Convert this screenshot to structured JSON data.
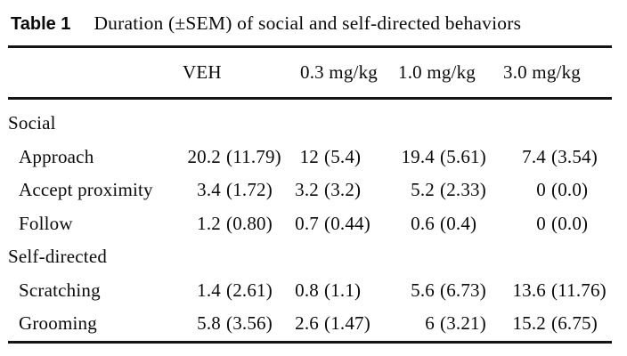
{
  "table": {
    "label": "Table 1",
    "caption": "Duration (±SEM) of social and self-directed behaviors",
    "columns": [
      "VEH",
      "0.3 mg/kg",
      "1.0 mg/kg",
      "3.0 mg/kg"
    ],
    "sections": [
      {
        "name": "Social",
        "rows": [
          {
            "label": "Approach",
            "cells": [
              {
                "value": "20.2",
                "sem": "(11.79)"
              },
              {
                "value": "12",
                "sem": "(5.4)"
              },
              {
                "value": "19.4",
                "sem": "(5.61)"
              },
              {
                "value": "7.4",
                "sem": "(3.54)"
              }
            ]
          },
          {
            "label": "Accept proximity",
            "cells": [
              {
                "value": "3.4",
                "sem": "(1.72)"
              },
              {
                "value": "3.2",
                "sem": "(3.2)"
              },
              {
                "value": "5.2",
                "sem": "(2.33)"
              },
              {
                "value": "0",
                "sem": "(0.0)"
              }
            ]
          },
          {
            "label": "Follow",
            "cells": [
              {
                "value": "1.2",
                "sem": "(0.80)"
              },
              {
                "value": "0.7",
                "sem": "(0.44)"
              },
              {
                "value": "0.6",
                "sem": "(0.4)"
              },
              {
                "value": "0",
                "sem": "(0.0)"
              }
            ]
          }
        ]
      },
      {
        "name": "Self-directed",
        "rows": [
          {
            "label": "Scratching",
            "cells": [
              {
                "value": "1.4",
                "sem": "(2.61)"
              },
              {
                "value": "0.8",
                "sem": "(1.1)"
              },
              {
                "value": "5.6",
                "sem": "(6.73)"
              },
              {
                "value": "13.6",
                "sem": "(11.76)"
              }
            ]
          },
          {
            "label": "Grooming",
            "cells": [
              {
                "value": "5.8",
                "sem": "(3.56)"
              },
              {
                "value": "2.6",
                "sem": "(1.47)"
              },
              {
                "value": "6",
                "sem": "(3.21)"
              },
              {
                "value": "15.2",
                "sem": "(6.75)"
              }
            ]
          }
        ]
      }
    ],
    "colors": {
      "text": "#0a0a0a",
      "rule": "#141414",
      "background": "#ffffff"
    }
  }
}
